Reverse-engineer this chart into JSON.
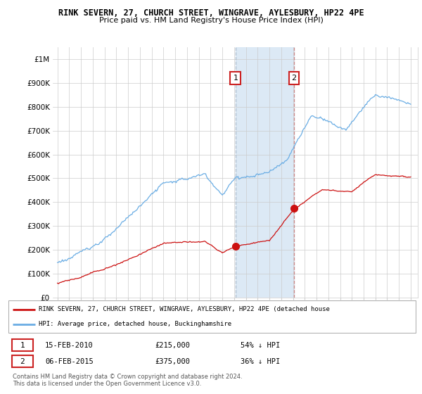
{
  "title": "RINK SEVERN, 27, CHURCH STREET, WINGRAVE, AYLESBURY, HP22 4PE",
  "subtitle": "Price paid vs. HM Land Registry's House Price Index (HPI)",
  "ylim": [
    0,
    1050000
  ],
  "yticks": [
    0,
    100000,
    200000,
    300000,
    400000,
    500000,
    600000,
    700000,
    800000,
    900000,
    1000000
  ],
  "ytick_labels": [
    "£0",
    "£100K",
    "£200K",
    "£300K",
    "£400K",
    "£500K",
    "£600K",
    "£700K",
    "£800K",
    "£900K",
    "£1M"
  ],
  "hpi_color": "#6aade4",
  "price_color": "#cc1111",
  "sale1_price": 215000,
  "sale1_year": 2010.12,
  "sale2_price": 375000,
  "sale2_year": 2015.09,
  "legend_red_label": "RINK SEVERN, 27, CHURCH STREET, WINGRAVE, AYLESBURY, HP22 4PE (detached house",
  "legend_blue_label": "HPI: Average price, detached house, Buckinghamshire",
  "table_row1": [
    "1",
    "15-FEB-2010",
    "£215,000",
    "54% ↓ HPI"
  ],
  "table_row2": [
    "2",
    "06-FEB-2015",
    "£375,000",
    "36% ↓ HPI"
  ],
  "footnote": "Contains HM Land Registry data © Crown copyright and database right 2024.\nThis data is licensed under the Open Government Licence v3.0.",
  "bg_color": "#ffffff",
  "grid_color": "#cccccc",
  "highlight_color": "#dce9f5"
}
